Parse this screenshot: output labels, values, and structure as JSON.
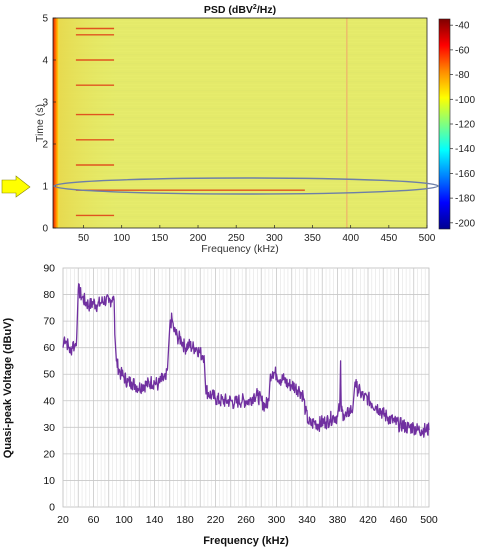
{
  "chart_data": [
    {
      "type": "heatmap",
      "title_main": "PSD (dBV",
      "title_sup": "2",
      "title_tail": "/Hz)",
      "xlabel": "Frequency (kHz)",
      "ylabel": "Time (s)",
      "xlim": [
        10,
        500
      ],
      "ylim": [
        0,
        5
      ],
      "xticks": [
        "50",
        "100",
        "150",
        "200",
        "250",
        "300",
        "350",
        "400",
        "450",
        "500"
      ],
      "yticks": [
        "0",
        "1",
        "2",
        "3",
        "4",
        "5"
      ],
      "colorbar": {
        "range": [
          -205,
          -35
        ],
        "ticks": [
          "-40",
          "-60",
          "-80",
          "-100",
          "-120",
          "-140",
          "-160",
          "-180",
          "-200"
        ],
        "colors": [
          "#7f0000",
          "#ff0000",
          "#ff8c00",
          "#ffff00",
          "#80ff80",
          "#00ffff",
          "#0080ff",
          "#0000ff",
          "#00008f"
        ]
      },
      "background_level_dBV": -95,
      "low_freq_band_khz": [
        10,
        18
      ],
      "harmonic_lines": [
        {
          "time_s": 0.3,
          "freq_khz": [
            40,
            90
          ]
        },
        {
          "time_s": 0.9,
          "freq_khz": [
            40,
            340
          ]
        },
        {
          "time_s": 1.5,
          "freq_khz": [
            40,
            90
          ]
        },
        {
          "time_s": 2.1,
          "freq_khz": [
            40,
            90
          ]
        },
        {
          "time_s": 2.7,
          "freq_khz": [
            40,
            90
          ]
        },
        {
          "time_s": 3.4,
          "freq_khz": [
            40,
            90
          ]
        },
        {
          "time_s": 4.0,
          "freq_khz": [
            40,
            90
          ]
        },
        {
          "time_s": 4.6,
          "freq_khz": [
            40,
            90
          ]
        },
        {
          "time_s": 4.75,
          "freq_khz": [
            40,
            90
          ]
        }
      ],
      "vertical_line_khz": 395,
      "highlight_time_s": 1.0,
      "highlight_color": "#6d7fa8",
      "arrow_color": "#ffff00"
    },
    {
      "type": "line",
      "xlabel": "Frequency (kHz)",
      "ylabel": "Quasi-peak Voltage (dBuV)",
      "xlim": [
        20,
        500
      ],
      "ylim": [
        0,
        90
      ],
      "xticks": [
        "20",
        "40",
        "60",
        "80",
        "100",
        "120",
        "140",
        "160",
        "180",
        "200",
        "220",
        "240",
        "260",
        "280",
        "300",
        "320",
        "340",
        "360",
        "380",
        "400",
        "420",
        "440",
        "460",
        "480",
        "500"
      ],
      "xtick_labels_shown": [
        "20",
        "60",
        "100",
        "140",
        "180",
        "220",
        "260",
        "300",
        "340",
        "380",
        "420",
        "460",
        "500"
      ],
      "yticks": [
        "0",
        "10",
        "20",
        "30",
        "40",
        "50",
        "60",
        "70",
        "80",
        "90"
      ],
      "grid": true,
      "line_color": "#7030a0",
      "series": [
        {
          "x": [
            20,
            22,
            25,
            28,
            30,
            33,
            35,
            38,
            40,
            45,
            50,
            55,
            60,
            65,
            70,
            75,
            80,
            85,
            87,
            88,
            90,
            93,
            96,
            100,
            105,
            110,
            115,
            120,
            125,
            130,
            135,
            140,
            145,
            150,
            155,
            157,
            160,
            163,
            165,
            170,
            175,
            180,
            185,
            190,
            195,
            200,
            203,
            205,
            207,
            210,
            215,
            220,
            225,
            230,
            235,
            240,
            245,
            250,
            255,
            260,
            265,
            270,
            275,
            280,
            285,
            290,
            292,
            295,
            300,
            305,
            310,
            315,
            320,
            325,
            330,
            335,
            338,
            342,
            345,
            350,
            355,
            360,
            365,
            370,
            375,
            380,
            383,
            384,
            385,
            388,
            392,
            395,
            400,
            403,
            405,
            410,
            415,
            420,
            425,
            430,
            435,
            440,
            445,
            450,
            455,
            460,
            465,
            470,
            475,
            480,
            485,
            490,
            495,
            500
          ],
          "y": [
            60,
            64,
            62,
            60,
            58,
            62,
            60,
            64,
            82,
            79,
            77,
            76,
            77,
            76,
            77,
            78,
            77,
            79,
            78,
            65,
            55,
            52,
            50,
            49,
            47,
            47,
            46,
            45,
            46,
            46,
            47,
            47,
            46,
            48,
            48,
            52,
            68,
            71,
            67,
            64,
            63,
            60,
            61,
            60,
            60,
            58,
            57,
            57,
            45,
            43,
            42,
            41,
            40,
            40,
            40,
            40,
            39,
            40,
            40,
            40,
            40,
            42,
            42,
            40,
            38,
            40,
            50,
            51,
            50,
            48,
            48,
            46,
            46,
            45,
            44,
            42,
            36,
            32,
            31,
            32,
            31,
            32,
            32,
            33,
            34,
            34,
            38,
            55,
            36,
            35,
            34,
            36,
            37,
            47,
            45,
            43,
            41,
            41,
            39,
            38,
            37,
            35,
            34,
            33,
            32,
            31,
            31,
            30,
            30,
            30,
            29,
            29,
            29,
            29
          ]
        }
      ]
    }
  ]
}
